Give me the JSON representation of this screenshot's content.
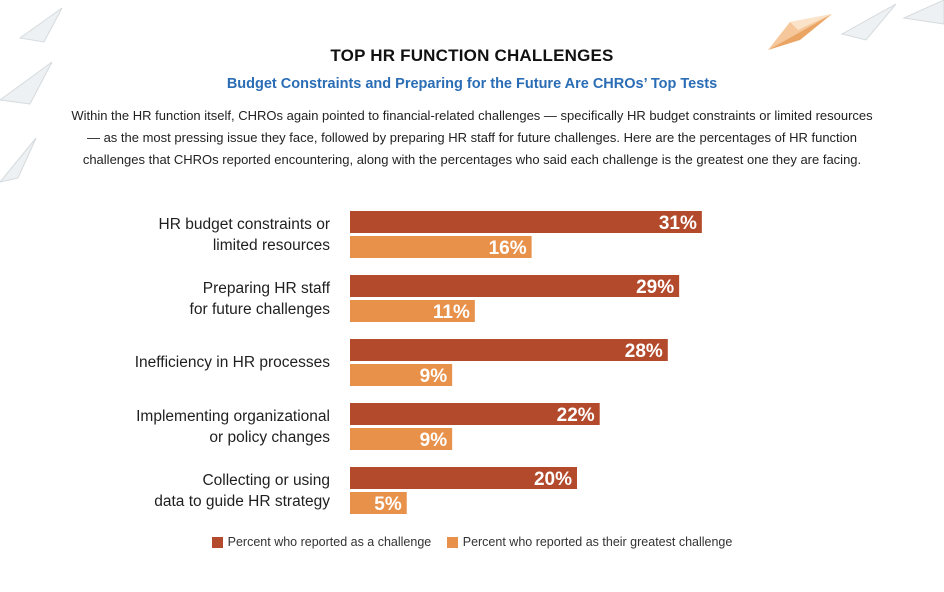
{
  "colors": {
    "challenge": "#b34a2c",
    "greatest": "#e8914b",
    "subtitle": "#2a6db5"
  },
  "header": {
    "title": "TOP HR FUNCTION CHALLENGES",
    "subtitle": "Budget Constraints and Preparing for the Future Are CHROs’ Top Tests",
    "intro": "Within the HR function itself, CHROs again pointed to financial-related challenges — specifically HR budget constraints or limited resources — as the most pressing issue they face, followed by preparing HR staff for future challenges. Here are the percentages of HR function challenges that CHROs reported encountering, along with the percentages who said each challenge is the greatest one they are facing."
  },
  "decoration": {
    "icons": [
      "paper-plane-icon"
    ]
  },
  "chart_data": {
    "type": "bar",
    "orientation": "horizontal",
    "categories": [
      [
        "HR budget constraints or",
        "limited resources"
      ],
      [
        "Preparing HR staff",
        "for future challenges"
      ],
      [
        "Inefficiency in HR processes"
      ],
      [
        "Implementing organizational",
        "or policy changes"
      ],
      [
        "Collecting or using",
        "data to guide HR strategy"
      ]
    ],
    "series": [
      {
        "name": "Percent who reported as a challenge",
        "values": [
          31,
          29,
          28,
          22,
          20
        ],
        "labels": [
          "31%",
          "29%",
          "28%",
          "22%",
          "20%"
        ]
      },
      {
        "name": "Percent who reported as their greatest challenge",
        "values": [
          16,
          11,
          9,
          9,
          5
        ],
        "labels": [
          "16%",
          "11%",
          "9%",
          "9%",
          "5%"
        ]
      }
    ],
    "grid": false,
    "legend_position": "bottom"
  }
}
